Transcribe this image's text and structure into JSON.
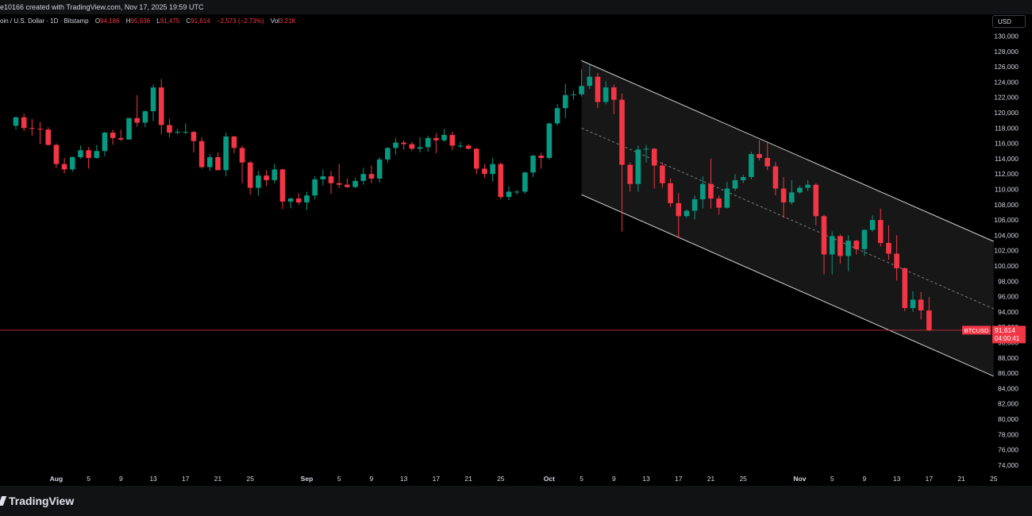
{
  "header": {
    "attribution": "e10166 created with TradingView.com, Nov 17, 2025 19:59 UTC"
  },
  "legend": {
    "symbol": "oin / U.S. Dollar · 1D · Bitstamp",
    "open_label": "O",
    "open": "94,186",
    "high_label": "H",
    "high": "95,938",
    "low_label": "L",
    "low": "91,475",
    "close_label": "C",
    "close": "91,614",
    "change": "−2,573 (−2.73%)",
    "vol_label": "Vol",
    "vol": "3.21K"
  },
  "currency": "USD",
  "price_tag": {
    "symbol": "BTCUSD",
    "price": "91,614",
    "countdown": "04:00:41"
  },
  "footer": {
    "brand": "TradingView"
  },
  "colors": {
    "up": "#089981",
    "down": "#f23645",
    "background": "#000000",
    "channel_fill": "#1a1a1a",
    "channel_line": "#d0d0d0",
    "axis_text": "#d1d4dc"
  },
  "chart_data": {
    "type": "candlestick",
    "y_axis": {
      "range": [
        73000,
        131000
      ],
      "ticks": [
        "130,000",
        "128,000",
        "126,000",
        "124,000",
        "122,000",
        "120,000",
        "118,000",
        "116,000",
        "114,000",
        "112,000",
        "110,000",
        "108,000",
        "106,000",
        "104,000",
        "102,000",
        "100,000",
        "98,000",
        "96,000",
        "94,000",
        "92,000",
        "90,000",
        "88,000",
        "86,000",
        "84,000",
        "82,000",
        "80,000",
        "78,000",
        "76,000",
        "74,000"
      ],
      "tick_values": [
        130000,
        128000,
        126000,
        124000,
        122000,
        120000,
        118000,
        116000,
        114000,
        112000,
        110000,
        108000,
        106000,
        104000,
        102000,
        100000,
        98000,
        96000,
        94000,
        92000,
        90000,
        88000,
        86000,
        84000,
        82000,
        80000,
        78000,
        76000,
        74000
      ]
    },
    "x_axis": {
      "ticks": [
        "Aug",
        "5",
        "9",
        "13",
        "17",
        "21",
        "25",
        "Sep",
        "5",
        "9",
        "13",
        "17",
        "21",
        "25",
        "Oct",
        "5",
        "9",
        "13",
        "17",
        "21",
        "25",
        "Nov",
        "5",
        "9",
        "13",
        "17",
        "21",
        "25"
      ],
      "tick_dates": [
        "2025-08-01",
        "2025-08-05",
        "2025-08-09",
        "2025-08-13",
        "2025-08-17",
        "2025-08-21",
        "2025-08-25",
        "2025-09-01",
        "2025-09-05",
        "2025-09-09",
        "2025-09-13",
        "2025-09-17",
        "2025-09-21",
        "2025-09-25",
        "2025-10-01",
        "2025-10-05",
        "2025-10-09",
        "2025-10-13",
        "2025-10-17",
        "2025-10-21",
        "2025-10-25",
        "2025-11-01",
        "2025-11-05",
        "2025-11-09",
        "2025-11-13",
        "2025-11-17",
        "2025-11-21",
        "2025-11-25"
      ],
      "range": [
        "2025-07-27",
        "2025-11-25"
      ]
    },
    "candles": [
      {
        "date": "2025-07-27",
        "o": 118300,
        "h": 119500,
        "l": 117800,
        "c": 119400
      },
      {
        "date": "2025-07-28",
        "o": 119400,
        "h": 119900,
        "l": 117600,
        "c": 118000
      },
      {
        "date": "2025-07-29",
        "o": 118000,
        "h": 119200,
        "l": 117000,
        "c": 117900
      },
      {
        "date": "2025-07-30",
        "o": 117900,
        "h": 118800,
        "l": 115900,
        "c": 117800
      },
      {
        "date": "2025-07-31",
        "o": 117800,
        "h": 118100,
        "l": 115700,
        "c": 115800
      },
      {
        "date": "2025-08-01",
        "o": 115800,
        "h": 116000,
        "l": 112800,
        "c": 113300
      },
      {
        "date": "2025-08-02",
        "o": 113300,
        "h": 114100,
        "l": 112100,
        "c": 112600
      },
      {
        "date": "2025-08-03",
        "o": 112600,
        "h": 114300,
        "l": 112300,
        "c": 114200
      },
      {
        "date": "2025-08-04",
        "o": 114200,
        "h": 115700,
        "l": 114000,
        "c": 115100
      },
      {
        "date": "2025-08-05",
        "o": 115100,
        "h": 115500,
        "l": 112700,
        "c": 114100
      },
      {
        "date": "2025-08-06",
        "o": 114100,
        "h": 115800,
        "l": 114000,
        "c": 115000
      },
      {
        "date": "2025-08-07",
        "o": 115000,
        "h": 117500,
        "l": 114300,
        "c": 117400
      },
      {
        "date": "2025-08-08",
        "o": 117400,
        "h": 117800,
        "l": 115800,
        "c": 116700
      },
      {
        "date": "2025-08-09",
        "o": 116700,
        "h": 117800,
        "l": 116300,
        "c": 116500
      },
      {
        "date": "2025-08-10",
        "o": 116500,
        "h": 119300,
        "l": 116500,
        "c": 119300
      },
      {
        "date": "2025-08-11",
        "o": 119300,
        "h": 122300,
        "l": 118200,
        "c": 118700
      },
      {
        "date": "2025-08-12",
        "o": 118700,
        "h": 120300,
        "l": 118100,
        "c": 120200
      },
      {
        "date": "2025-08-13",
        "o": 120200,
        "h": 123700,
        "l": 118900,
        "c": 123300
      },
      {
        "date": "2025-08-14",
        "o": 123300,
        "h": 124400,
        "l": 117200,
        "c": 118400
      },
      {
        "date": "2025-08-15",
        "o": 118400,
        "h": 119200,
        "l": 116800,
        "c": 117400
      },
      {
        "date": "2025-08-16",
        "o": 117400,
        "h": 117900,
        "l": 117200,
        "c": 117500
      },
      {
        "date": "2025-08-17",
        "o": 117500,
        "h": 118600,
        "l": 117200,
        "c": 117500
      },
      {
        "date": "2025-08-18",
        "o": 117500,
        "h": 117600,
        "l": 114800,
        "c": 116300
      },
      {
        "date": "2025-08-19",
        "o": 116300,
        "h": 116800,
        "l": 112700,
        "c": 112900
      },
      {
        "date": "2025-08-20",
        "o": 112900,
        "h": 114600,
        "l": 112400,
        "c": 114200
      },
      {
        "date": "2025-08-21",
        "o": 114200,
        "h": 114800,
        "l": 112600,
        "c": 112500
      },
      {
        "date": "2025-08-22",
        "o": 112500,
        "h": 117400,
        "l": 111700,
        "c": 116900
      },
      {
        "date": "2025-08-23",
        "o": 116900,
        "h": 117000,
        "l": 114700,
        "c": 115400
      },
      {
        "date": "2025-08-24",
        "o": 115400,
        "h": 115700,
        "l": 110800,
        "c": 113500
      },
      {
        "date": "2025-08-25",
        "o": 113500,
        "h": 113700,
        "l": 109300,
        "c": 110200
      },
      {
        "date": "2025-08-26",
        "o": 110200,
        "h": 112400,
        "l": 109200,
        "c": 111800
      },
      {
        "date": "2025-08-27",
        "o": 111800,
        "h": 112500,
        "l": 110400,
        "c": 111200
      },
      {
        "date": "2025-08-28",
        "o": 111200,
        "h": 113300,
        "l": 110800,
        "c": 112600
      },
      {
        "date": "2025-08-29",
        "o": 112600,
        "h": 112700,
        "l": 107400,
        "c": 108400
      },
      {
        "date": "2025-08-30",
        "o": 108400,
        "h": 108900,
        "l": 107500,
        "c": 108800
      },
      {
        "date": "2025-08-31",
        "o": 108800,
        "h": 109500,
        "l": 108000,
        "c": 108300
      },
      {
        "date": "2025-09-01",
        "o": 108300,
        "h": 109700,
        "l": 107300,
        "c": 109200
      },
      {
        "date": "2025-09-02",
        "o": 109200,
        "h": 111700,
        "l": 108700,
        "c": 111300
      },
      {
        "date": "2025-09-03",
        "o": 111300,
        "h": 112600,
        "l": 110500,
        "c": 111700
      },
      {
        "date": "2025-09-04",
        "o": 111700,
        "h": 112400,
        "l": 109400,
        "c": 110800
      },
      {
        "date": "2025-09-05",
        "o": 110800,
        "h": 113300,
        "l": 110200,
        "c": 110600
      },
      {
        "date": "2025-09-06",
        "o": 110600,
        "h": 111400,
        "l": 110200,
        "c": 110300
      },
      {
        "date": "2025-09-07",
        "o": 110300,
        "h": 111500,
        "l": 110200,
        "c": 111100
      },
      {
        "date": "2025-09-08",
        "o": 111100,
        "h": 112800,
        "l": 110600,
        "c": 112000
      },
      {
        "date": "2025-09-09",
        "o": 112000,
        "h": 113100,
        "l": 110800,
        "c": 111400
      },
      {
        "date": "2025-09-10",
        "o": 111400,
        "h": 114200,
        "l": 110900,
        "c": 113900
      },
      {
        "date": "2025-09-11",
        "o": 113900,
        "h": 115500,
        "l": 113500,
        "c": 115400
      },
      {
        "date": "2025-09-12",
        "o": 115400,
        "h": 116700,
        "l": 114500,
        "c": 116100
      },
      {
        "date": "2025-09-13",
        "o": 116100,
        "h": 116400,
        "l": 115200,
        "c": 115900
      },
      {
        "date": "2025-09-14",
        "o": 115900,
        "h": 116200,
        "l": 115000,
        "c": 115300
      },
      {
        "date": "2025-09-15",
        "o": 115300,
        "h": 116800,
        "l": 114800,
        "c": 115500
      },
      {
        "date": "2025-09-16",
        "o": 115500,
        "h": 117000,
        "l": 114900,
        "c": 116700
      },
      {
        "date": "2025-09-17",
        "o": 116700,
        "h": 117300,
        "l": 114700,
        "c": 116400
      },
      {
        "date": "2025-09-18",
        "o": 116400,
        "h": 117900,
        "l": 116200,
        "c": 117100
      },
      {
        "date": "2025-09-19",
        "o": 117100,
        "h": 117500,
        "l": 115100,
        "c": 115700
      },
      {
        "date": "2025-09-20",
        "o": 115700,
        "h": 116200,
        "l": 115400,
        "c": 115700
      },
      {
        "date": "2025-09-21",
        "o": 115700,
        "h": 115900,
        "l": 115200,
        "c": 115300
      },
      {
        "date": "2025-09-22",
        "o": 115300,
        "h": 115400,
        "l": 112000,
        "c": 112700
      },
      {
        "date": "2025-09-23",
        "o": 112700,
        "h": 113300,
        "l": 111500,
        "c": 112000
      },
      {
        "date": "2025-09-24",
        "o": 112000,
        "h": 114100,
        "l": 111000,
        "c": 113300
      },
      {
        "date": "2025-09-25",
        "o": 113300,
        "h": 113500,
        "l": 108700,
        "c": 109000
      },
      {
        "date": "2025-09-26",
        "o": 109000,
        "h": 110400,
        "l": 108600,
        "c": 109700
      },
      {
        "date": "2025-09-27",
        "o": 109700,
        "h": 109900,
        "l": 109300,
        "c": 109700
      },
      {
        "date": "2025-09-28",
        "o": 109700,
        "h": 112300,
        "l": 109400,
        "c": 112200
      },
      {
        "date": "2025-09-29",
        "o": 112200,
        "h": 114500,
        "l": 111600,
        "c": 114400
      },
      {
        "date": "2025-09-30",
        "o": 114400,
        "h": 114800,
        "l": 112700,
        "c": 114100
      },
      {
        "date": "2025-10-01",
        "o": 114100,
        "h": 118700,
        "l": 113900,
        "c": 118600
      },
      {
        "date": "2025-10-02",
        "o": 118600,
        "h": 121100,
        "l": 118300,
        "c": 120600
      },
      {
        "date": "2025-10-03",
        "o": 120600,
        "h": 123800,
        "l": 119300,
        "c": 122300
      },
      {
        "date": "2025-10-04",
        "o": 122300,
        "h": 122900,
        "l": 121700,
        "c": 122400
      },
      {
        "date": "2025-10-05",
        "o": 122400,
        "h": 125700,
        "l": 122100,
        "c": 123500
      },
      {
        "date": "2025-10-06",
        "o": 123500,
        "h": 126300,
        "l": 123100,
        "c": 124700
      },
      {
        "date": "2025-10-07",
        "o": 124700,
        "h": 125200,
        "l": 120600,
        "c": 121400
      },
      {
        "date": "2025-10-08",
        "o": 121400,
        "h": 124100,
        "l": 121100,
        "c": 123300
      },
      {
        "date": "2025-10-09",
        "o": 123300,
        "h": 123700,
        "l": 119800,
        "c": 121700
      },
      {
        "date": "2025-10-10",
        "o": 121700,
        "h": 122500,
        "l": 104500,
        "c": 113200
      },
      {
        "date": "2025-10-11",
        "o": 113200,
        "h": 113500,
        "l": 109700,
        "c": 110700
      },
      {
        "date": "2025-10-12",
        "o": 110700,
        "h": 115700,
        "l": 109700,
        "c": 115200
      },
      {
        "date": "2025-10-13",
        "o": 115200,
        "h": 115800,
        "l": 113500,
        "c": 115300
      },
      {
        "date": "2025-10-14",
        "o": 115300,
        "h": 115400,
        "l": 110100,
        "c": 113100
      },
      {
        "date": "2025-10-15",
        "o": 113100,
        "h": 113500,
        "l": 110200,
        "c": 110800
      },
      {
        "date": "2025-10-16",
        "o": 110800,
        "h": 111400,
        "l": 107700,
        "c": 108200
      },
      {
        "date": "2025-10-17",
        "o": 108200,
        "h": 109500,
        "l": 103600,
        "c": 106500
      },
      {
        "date": "2025-10-18",
        "o": 106500,
        "h": 107400,
        "l": 106300,
        "c": 107200
      },
      {
        "date": "2025-10-19",
        "o": 107200,
        "h": 109200,
        "l": 106100,
        "c": 108700
      },
      {
        "date": "2025-10-20",
        "o": 108700,
        "h": 111700,
        "l": 107500,
        "c": 110700
      },
      {
        "date": "2025-10-21",
        "o": 110700,
        "h": 114000,
        "l": 107500,
        "c": 108800
      },
      {
        "date": "2025-10-22",
        "o": 108800,
        "h": 109200,
        "l": 106700,
        "c": 107600
      },
      {
        "date": "2025-10-23",
        "o": 107600,
        "h": 111000,
        "l": 107500,
        "c": 110100
      },
      {
        "date": "2025-10-24",
        "o": 110100,
        "h": 112000,
        "l": 109800,
        "c": 111200
      },
      {
        "date": "2025-10-25",
        "o": 111200,
        "h": 111900,
        "l": 110800,
        "c": 111600
      },
      {
        "date": "2025-10-26",
        "o": 111600,
        "h": 114900,
        "l": 111300,
        "c": 114600
      },
      {
        "date": "2025-10-27",
        "o": 114600,
        "h": 116400,
        "l": 113800,
        "c": 114100
      },
      {
        "date": "2025-10-28",
        "o": 114100,
        "h": 116100,
        "l": 112500,
        "c": 113000
      },
      {
        "date": "2025-10-29",
        "o": 113000,
        "h": 113600,
        "l": 109200,
        "c": 110100
      },
      {
        "date": "2025-10-30",
        "o": 110100,
        "h": 111600,
        "l": 106300,
        "c": 108300
      },
      {
        "date": "2025-10-31",
        "o": 108300,
        "h": 111200,
        "l": 108000,
        "c": 109600
      },
      {
        "date": "2025-11-01",
        "o": 109600,
        "h": 110500,
        "l": 109400,
        "c": 110200
      },
      {
        "date": "2025-11-02",
        "o": 110200,
        "h": 111200,
        "l": 109800,
        "c": 110600
      },
      {
        "date": "2025-11-03",
        "o": 110600,
        "h": 110800,
        "l": 105300,
        "c": 106500
      },
      {
        "date": "2025-11-04",
        "o": 106500,
        "h": 106700,
        "l": 98900,
        "c": 101500
      },
      {
        "date": "2025-11-05",
        "o": 101500,
        "h": 104500,
        "l": 98900,
        "c": 103900
      },
      {
        "date": "2025-11-06",
        "o": 103900,
        "h": 104100,
        "l": 100300,
        "c": 101300
      },
      {
        "date": "2025-11-07",
        "o": 101300,
        "h": 104000,
        "l": 99300,
        "c": 103300
      },
      {
        "date": "2025-11-08",
        "o": 103300,
        "h": 103400,
        "l": 101500,
        "c": 102200
      },
      {
        "date": "2025-11-09",
        "o": 102200,
        "h": 104800,
        "l": 101300,
        "c": 104700
      },
      {
        "date": "2025-11-10",
        "o": 104700,
        "h": 106600,
        "l": 104500,
        "c": 106000
      },
      {
        "date": "2025-11-11",
        "o": 106000,
        "h": 107500,
        "l": 102500,
        "c": 103000
      },
      {
        "date": "2025-11-12",
        "o": 103000,
        "h": 105300,
        "l": 100800,
        "c": 101600
      },
      {
        "date": "2025-11-13",
        "o": 101600,
        "h": 104000,
        "l": 98100,
        "c": 99700
      },
      {
        "date": "2025-11-14",
        "o": 99700,
        "h": 99800,
        "l": 94100,
        "c": 94500
      },
      {
        "date": "2025-11-15",
        "o": 94500,
        "h": 96700,
        "l": 94000,
        "c": 95600
      },
      {
        "date": "2025-11-16",
        "o": 95600,
        "h": 96600,
        "l": 93000,
        "c": 94200
      },
      {
        "date": "2025-11-17",
        "o": 94186,
        "h": 95938,
        "l": 91475,
        "c": 91614
      }
    ],
    "channel": {
      "upper": [
        {
          "date": "2025-10-05",
          "price": 126800
        },
        {
          "date": "2025-11-25",
          "price": 103200
        }
      ],
      "lower": [
        {
          "date": "2025-10-05",
          "price": 109300
        },
        {
          "date": "2025-11-25",
          "price": 85600
        }
      ],
      "median": [
        {
          "date": "2025-10-05",
          "price": 118000
        },
        {
          "date": "2025-11-25",
          "price": 94400
        }
      ]
    },
    "last_price": 91614
  }
}
